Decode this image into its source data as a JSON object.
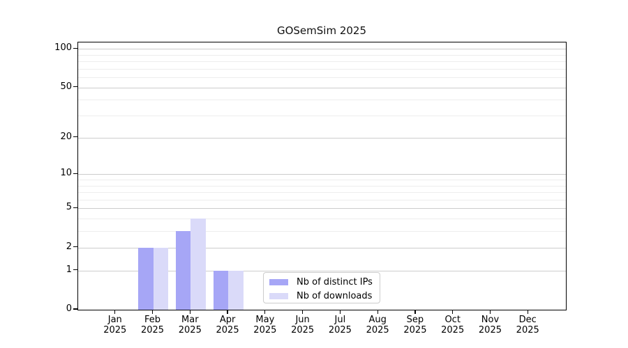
{
  "chart_data": {
    "type": "bar",
    "title": "GOSemSim 2025",
    "year": "2025",
    "months": [
      "Jan",
      "Feb",
      "Mar",
      "Apr",
      "May",
      "Jun",
      "Jul",
      "Aug",
      "Sep",
      "Oct",
      "Nov",
      "Dec"
    ],
    "series": [
      {
        "name": "Nb of distinct IPs",
        "color": "#a6a6f6",
        "values": [
          0,
          2,
          3,
          1,
          0,
          0,
          0,
          0,
          0,
          0,
          0,
          0
        ]
      },
      {
        "name": "Nb of downloads",
        "color": "#dadaf9",
        "values": [
          0,
          2,
          4,
          1,
          0,
          0,
          0,
          0,
          0,
          0,
          0,
          0
        ]
      }
    ],
    "y_axis": {
      "scale": "log1p",
      "major_ticks": [
        0,
        1,
        2,
        5,
        10,
        20,
        50,
        100
      ],
      "minor_ticks": [
        3,
        4,
        6,
        7,
        8,
        9,
        30,
        40,
        60,
        70,
        80,
        90
      ],
      "top_value": 112
    },
    "grid": {
      "major_color": "#cccccc",
      "minor_color": "#ededed"
    },
    "legend_position": "bottom-center",
    "colors": {
      "axis": "#000000",
      "background": "#ffffff",
      "text": "#000000"
    }
  }
}
